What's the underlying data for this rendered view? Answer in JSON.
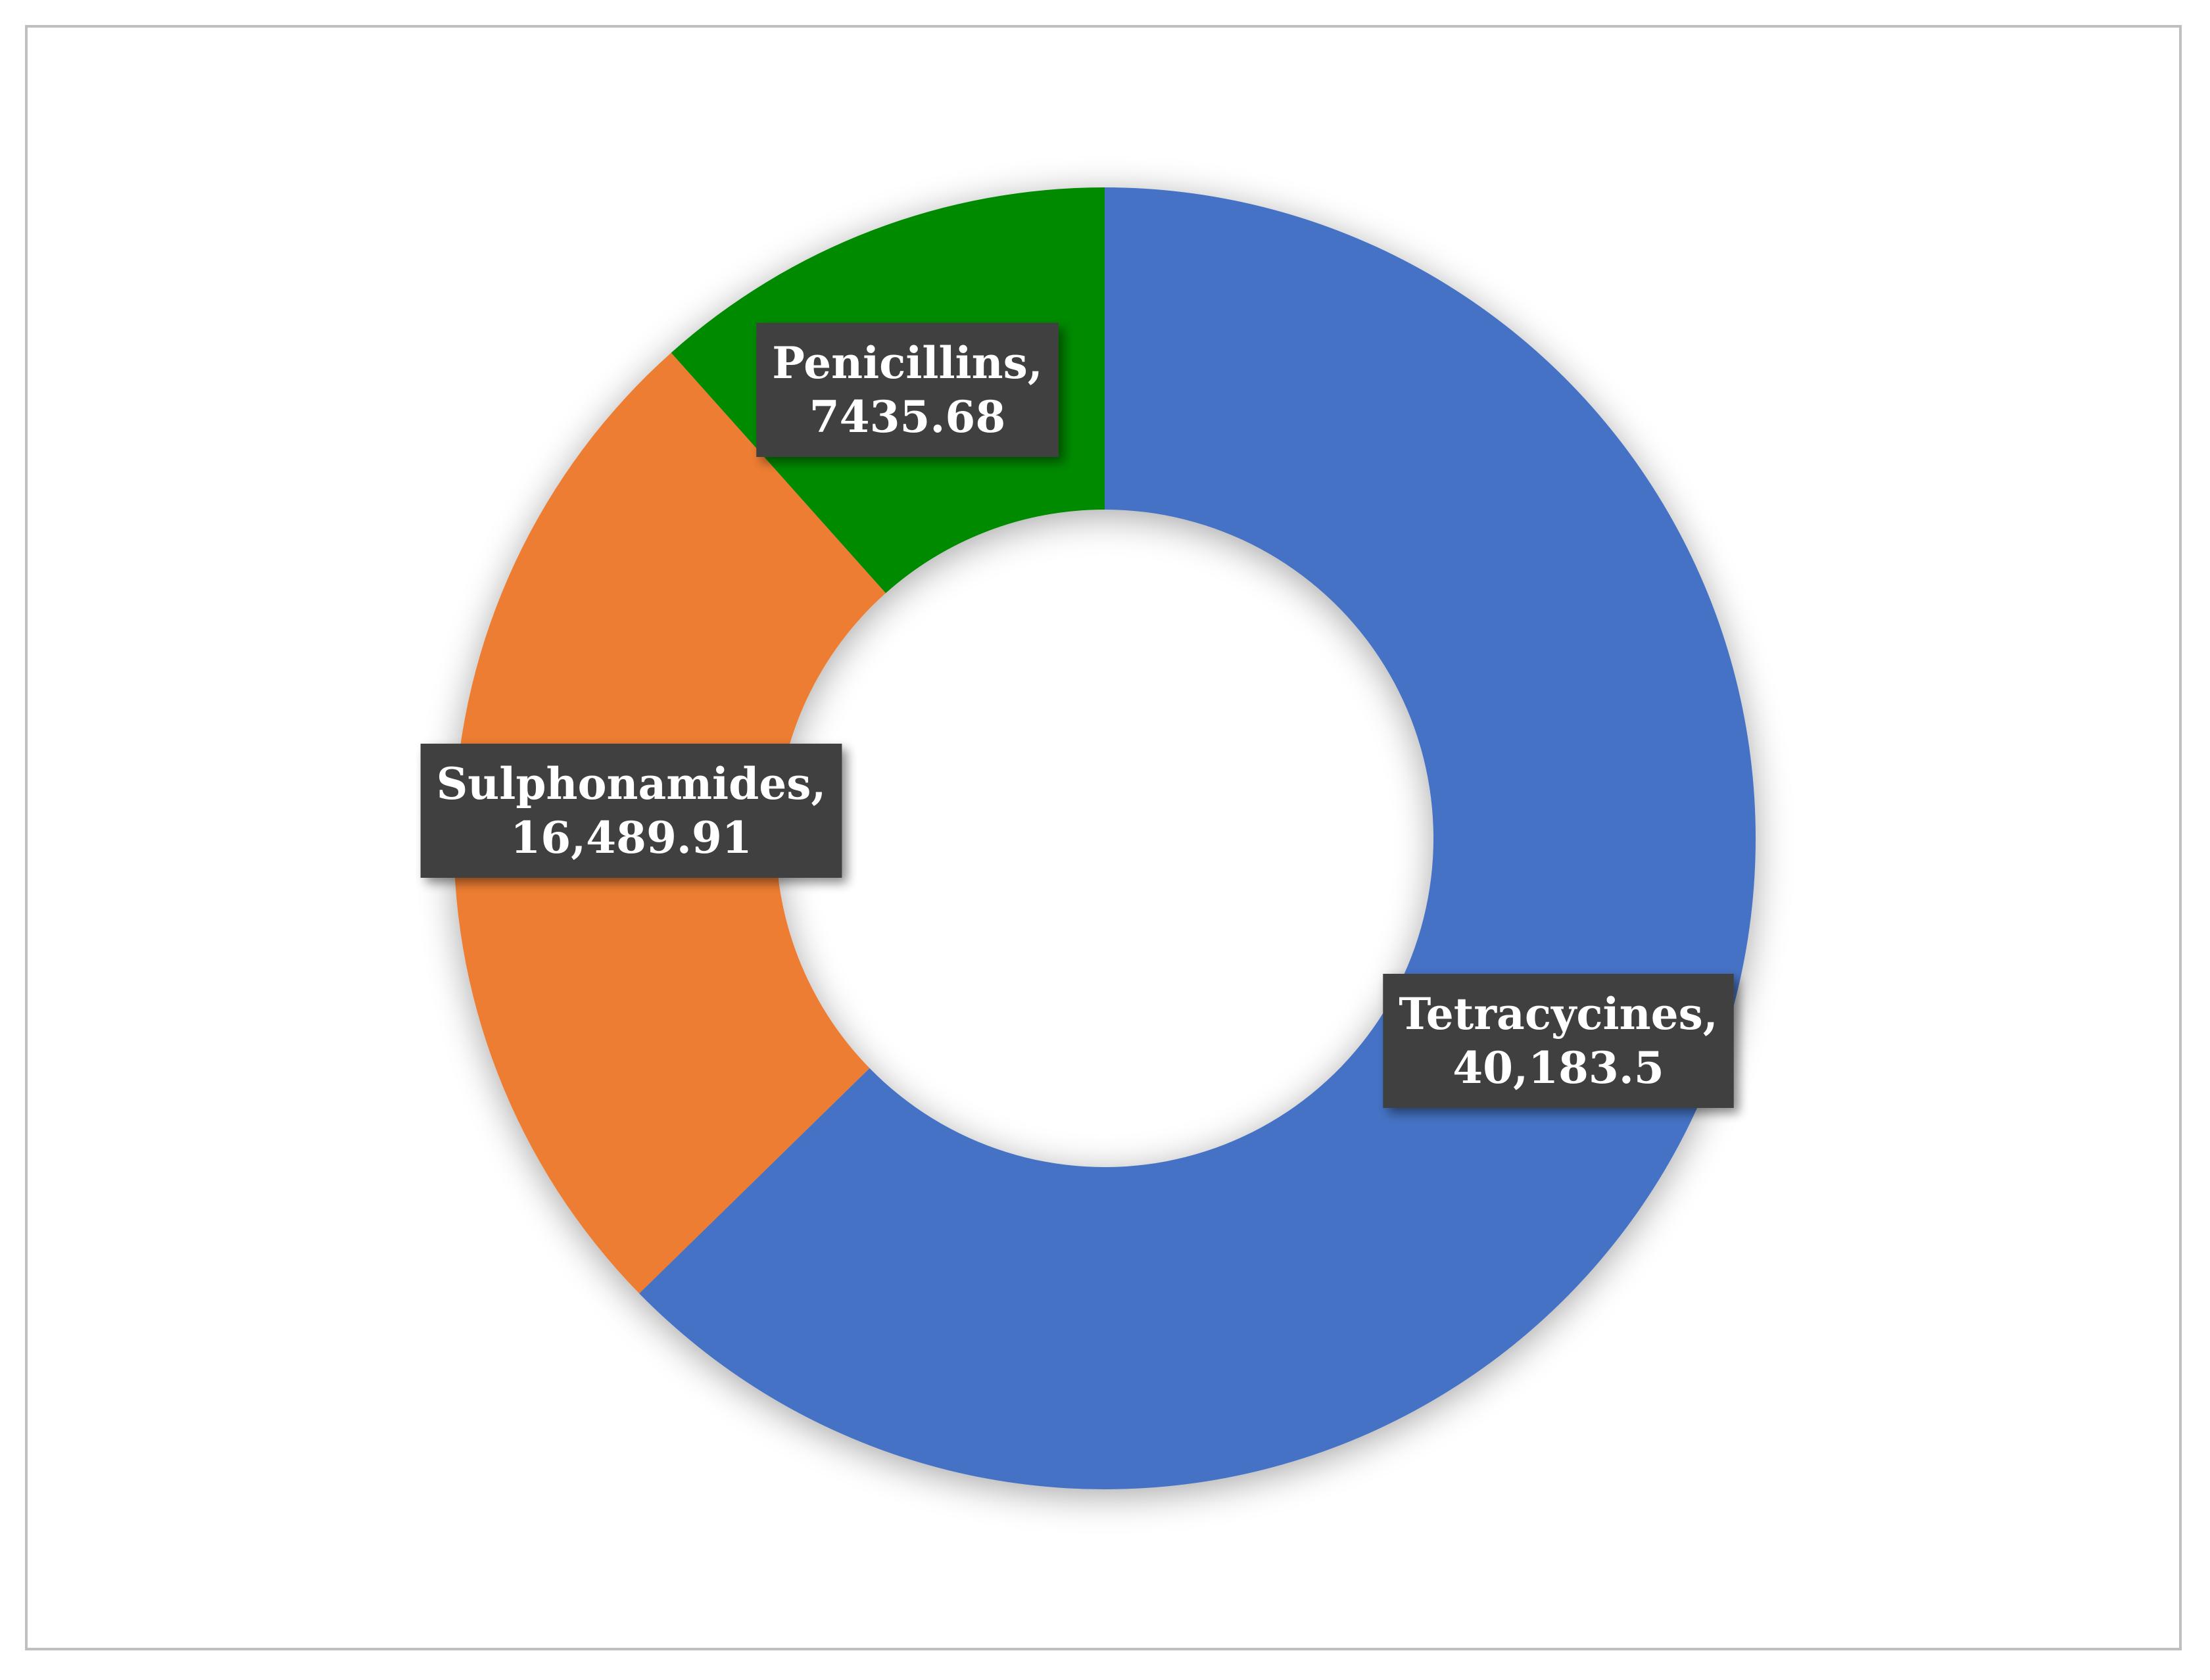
{
  "chart_data": {
    "type": "pie",
    "variant": "doughnut",
    "title": "",
    "slices": [
      {
        "name": "Tetracycines",
        "value": 40183.5,
        "label": "Tetracycines,",
        "value_label": "40,183.5",
        "color": "#4472C4"
      },
      {
        "name": "Sulphonamides",
        "value": 16489.91,
        "label": "Sulphonamides,",
        "value_label": "16,489.91",
        "color": "#ED7D31"
      },
      {
        "name": "Penicillins",
        "value": 7435.68,
        "label": "Penicillins,",
        "value_label": "7435.68",
        "color": "#008A00"
      }
    ],
    "start_angle_deg": 0,
    "direction": "clockwise",
    "legend": "none",
    "label_box_color": "#404040",
    "label_text_color": "#FFFFFF",
    "frame_border_color": "#BFBFBF"
  }
}
